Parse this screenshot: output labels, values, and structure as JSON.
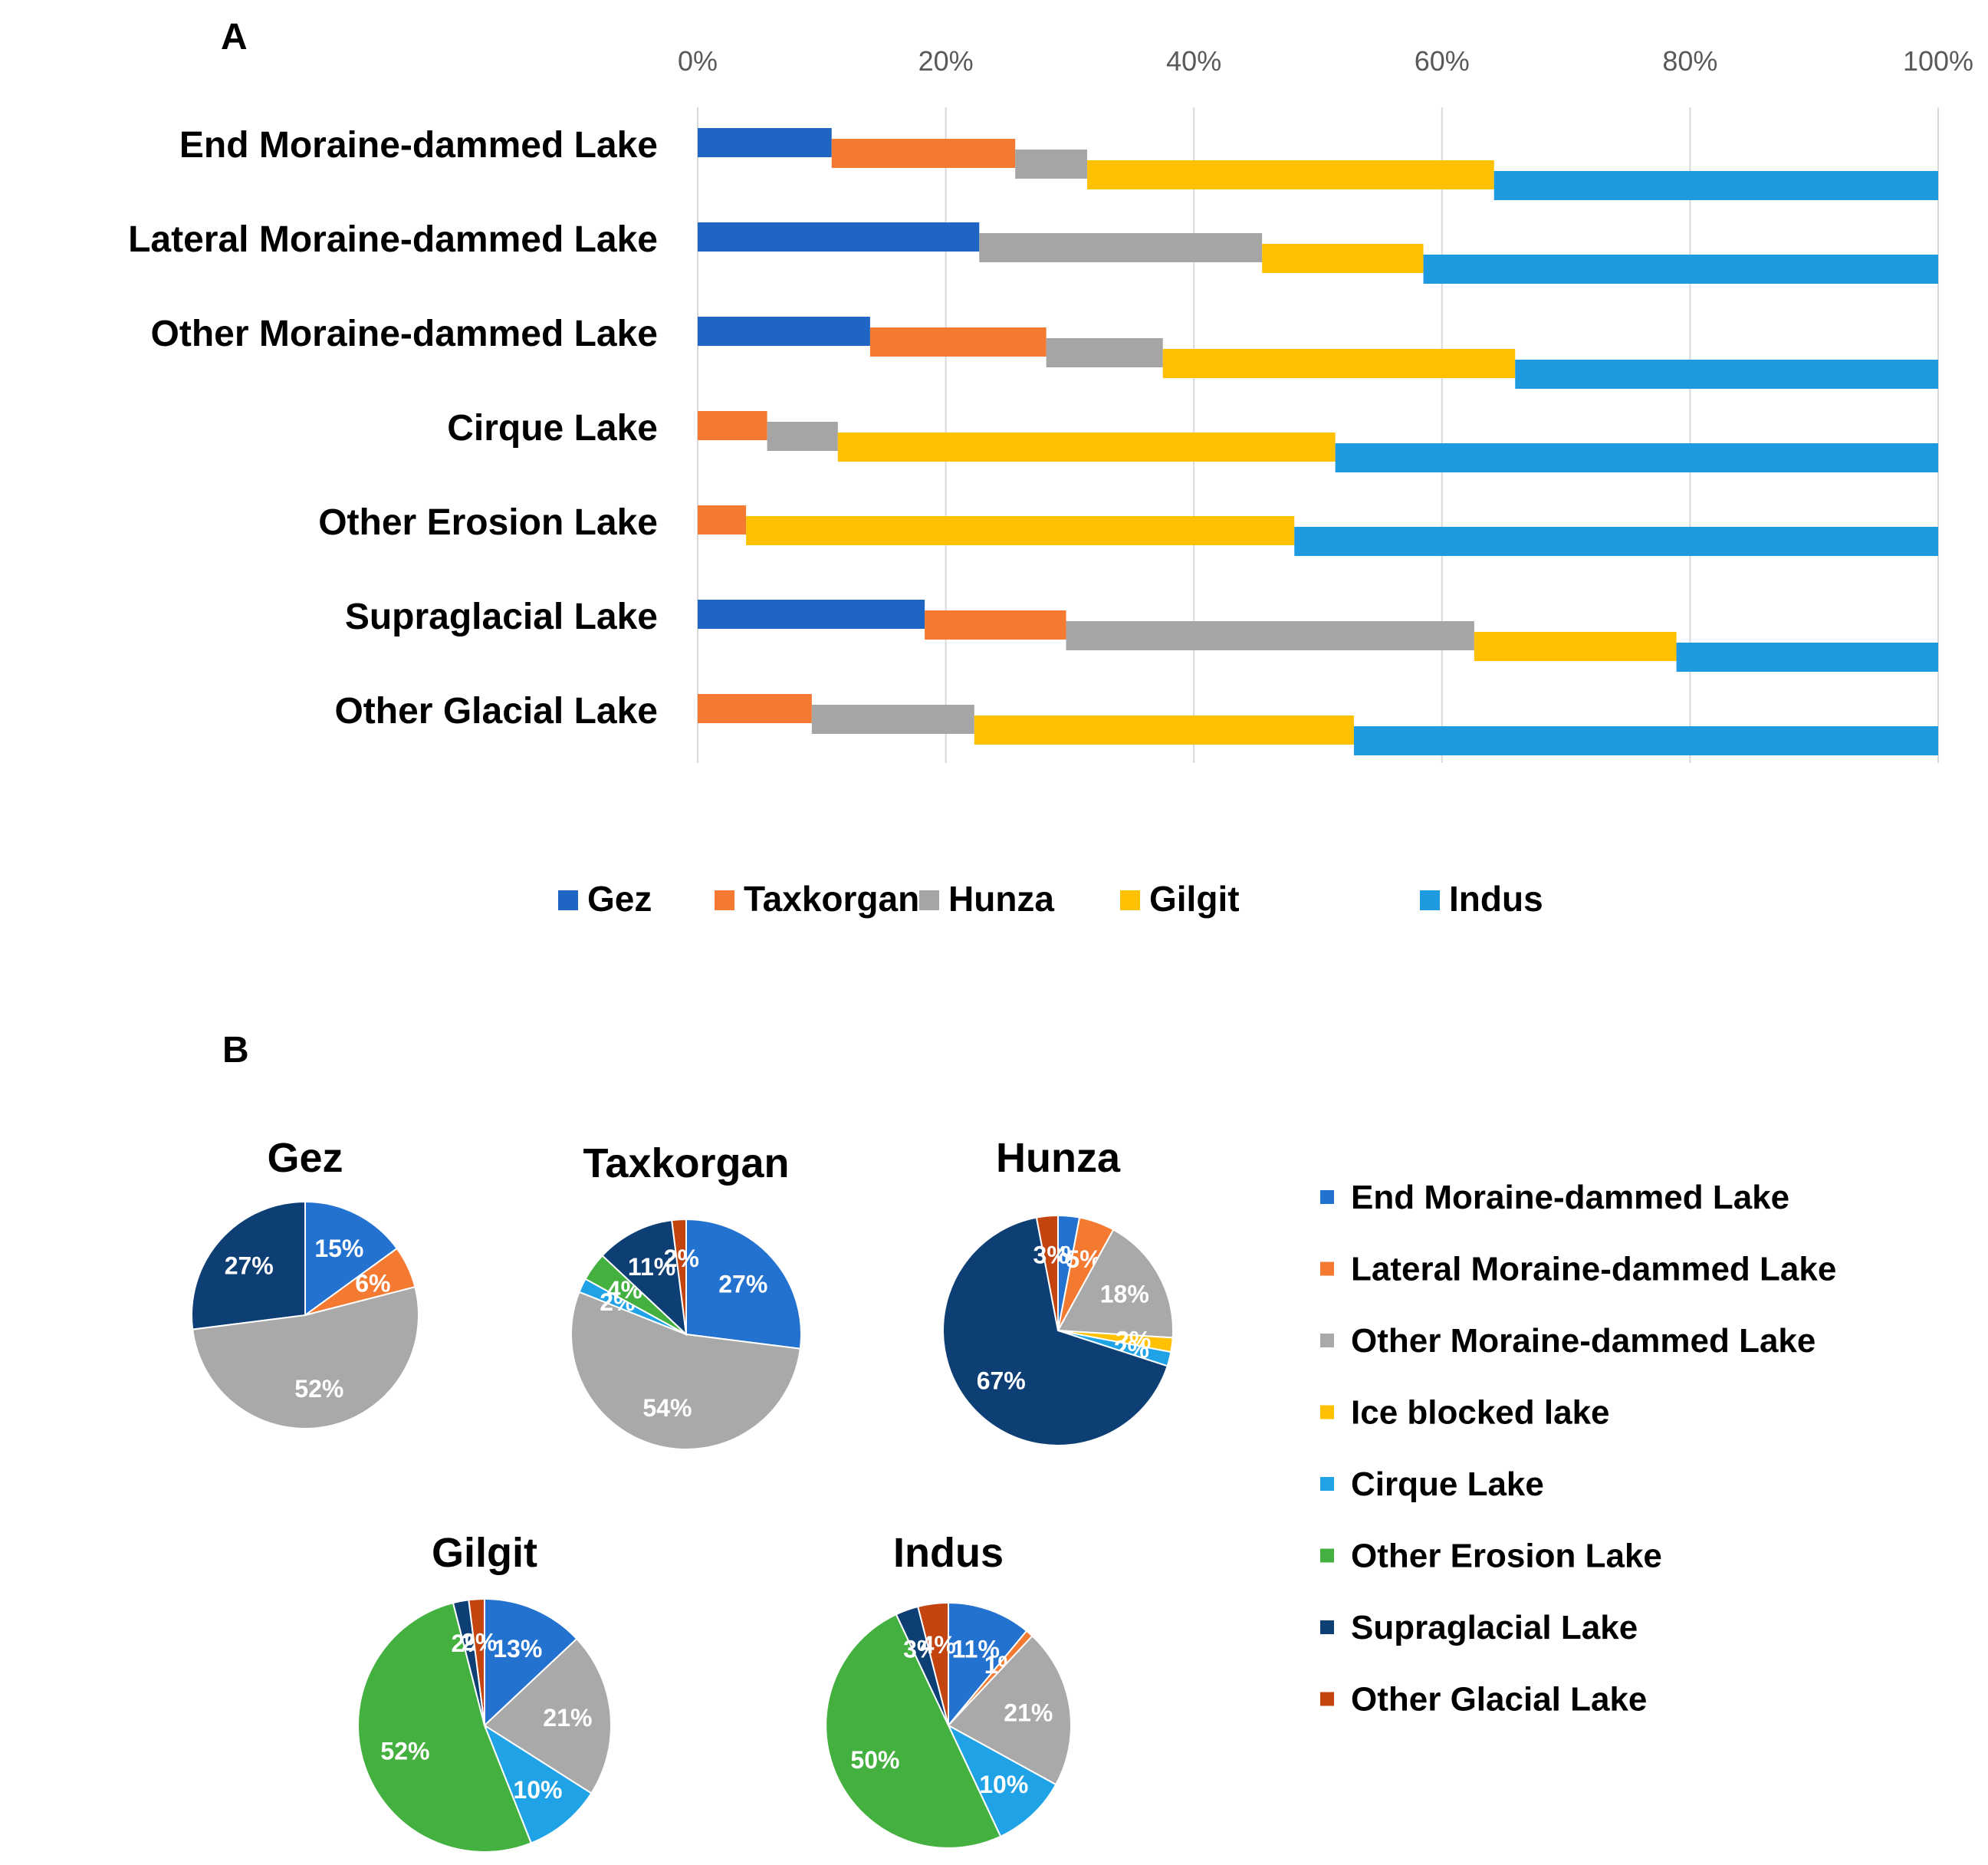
{
  "colors": {
    "Gez": "#1f66c4",
    "Taxkorgan": "#f47a32",
    "Hunza": "#a5a5a5",
    "Gilgit": "#ffc000",
    "Indus": "#1f9ae0",
    "end_moraine": "#2472d0",
    "lateral_moraine": "#f47a32",
    "other_moraine": "#a9a9a9",
    "ice_blocked": "#ffc000",
    "cirque": "#1fa3e6",
    "other_erosion": "#44b03f",
    "supraglacial": "#0d3e74",
    "other_glacial": "#c3440f",
    "gridline": "#d9d9d9"
  },
  "chart_data": [
    {
      "panel": "A",
      "type": "bar",
      "orientation": "horizontal",
      "stacked": "percent",
      "title": "",
      "xlabel": "",
      "ylabel": "",
      "xlim": [
        0,
        100
      ],
      "ticks": [
        "0%",
        "20%",
        "40%",
        "60%",
        "80%",
        "100%"
      ],
      "grid": true,
      "legend": "bottom",
      "categories": [
        "End Moraine-dammed Lake",
        "Lateral Moraine-dammed Lake",
        "Other Moraine-dammed Lake",
        "Cirque Lake",
        "Other Erosion Lake",
        "Supraglacial Lake",
        "Other Glacial Lake"
      ],
      "series": [
        {
          "name": "Gez",
          "values": [
            10.8,
            22.7,
            13.9,
            0,
            0,
            18.3,
            0
          ]
        },
        {
          "name": "Taxkorgan",
          "values": [
            14.8,
            0,
            14.2,
            5.6,
            3.9,
            11.4,
            9.2
          ]
        },
        {
          "name": "Hunza",
          "values": [
            5.8,
            22.8,
            9.4,
            5.7,
            0,
            32.9,
            13.1
          ]
        },
        {
          "name": "Gilgit",
          "values": [
            32.8,
            13.0,
            28.4,
            40.1,
            44.2,
            16.3,
            30.6
          ]
        },
        {
          "name": "Indus",
          "values": [
            35.8,
            41.5,
            34.1,
            48.6,
            51.9,
            21.1,
            47.1
          ]
        }
      ]
    },
    {
      "panel": "B",
      "type": "pie",
      "legend": "right",
      "legend_entries": [
        "End Moraine-dammed Lake",
        "Lateral Moraine-dammed Lake",
        "Other Moraine-dammed Lake",
        "Ice blocked lake",
        "Cirque Lake",
        "Other Erosion Lake",
        "Supraglacial Lake",
        "Other Glacial Lake"
      ],
      "pies": [
        {
          "title": "Gez",
          "values": [
            15,
            6,
            52,
            0,
            0,
            0,
            27,
            0
          ],
          "labels": [
            "15%",
            "6%",
            "52%",
            "",
            "",
            "",
            "27%",
            ""
          ]
        },
        {
          "title": "Taxkorgan",
          "values": [
            27,
            0,
            54,
            0,
            2,
            4,
            11,
            2
          ],
          "labels": [
            "27%",
            "",
            "54%",
            "",
            "2%",
            "4%",
            "11%",
            "2%"
          ]
        },
        {
          "title": "Hunza",
          "values": [
            3,
            5,
            18,
            2,
            2,
            0,
            67,
            3
          ],
          "labels": [
            "3%",
            "5%",
            "18%",
            "2%",
            "2%",
            "",
            "67%",
            "3%"
          ]
        },
        {
          "title": "Gilgit",
          "values": [
            13,
            0,
            21,
            0,
            10,
            52,
            2,
            2
          ],
          "labels": [
            "13%",
            "",
            "21%",
            "",
            "10%",
            "52%",
            "2%",
            "2%"
          ]
        },
        {
          "title": "Indus",
          "values": [
            11,
            1,
            21,
            0,
            10,
            50,
            3,
            4
          ],
          "labels": [
            "11%",
            "1%",
            "21%",
            "",
            "10%",
            "50%",
            "3%",
            "4%"
          ]
        }
      ]
    }
  ],
  "panel_a_letter": "A",
  "panel_b_letter": "B"
}
